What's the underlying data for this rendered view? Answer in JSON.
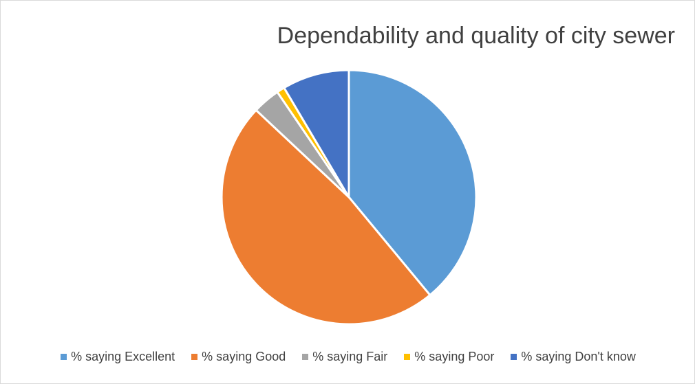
{
  "chart_data": {
    "type": "pie",
    "title": "Dependability and quality of city sewer",
    "legend_position": "bottom",
    "slices": [
      {
        "label": "% saying Excellent",
        "value": 39,
        "color": "#5B9BD5"
      },
      {
        "label": "% saying Good",
        "value": 48,
        "color": "#ED7D31"
      },
      {
        "label": "% saying Fair",
        "value": 3.5,
        "color": "#A5A5A5"
      },
      {
        "label": "% saying Poor",
        "value": 1,
        "color": "#FFC000"
      },
      {
        "label": "% saying Don't know",
        "value": 8.5,
        "color": "#4472C4"
      }
    ]
  }
}
